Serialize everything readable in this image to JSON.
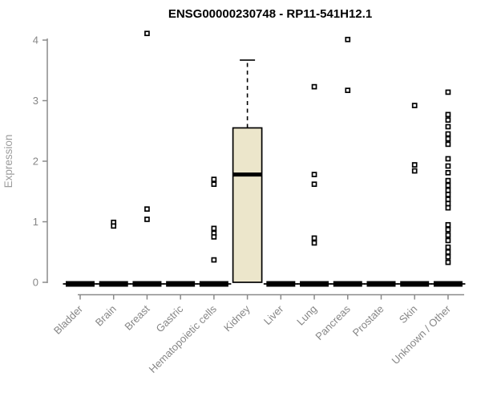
{
  "colors": {
    "background": "#ffffff",
    "chart_title": "#000000",
    "axis_line": "#8a8a8a",
    "tick_label": "#868686",
    "axis_title": "#9c9c9c",
    "box_fill": "#ece6cb",
    "box_stroke": "#000000",
    "outlier_fill": "#ffffff",
    "outlier_stroke": "#000000"
  },
  "chart_data": {
    "type": "boxplot",
    "title": "ENSG00000230748 - RP11-541H12.1",
    "xlabel": "",
    "ylabel": "Expression",
    "ylim": [
      0,
      4
    ],
    "yticks": [
      0,
      1,
      2,
      3,
      4
    ],
    "grid": false,
    "categories": [
      "Bladder",
      "Brain",
      "Breast",
      "Gastric",
      "Hematopoietic cells",
      "Kidney",
      "Liver",
      "Lung",
      "Pancreas",
      "Prostate",
      "Skin",
      "Unknown / Other"
    ],
    "boxes": [
      {
        "category": "Bladder",
        "q1": 0,
        "median": 0,
        "q3": 0,
        "whisker_low": 0,
        "whisker_high": 0,
        "outliers": []
      },
      {
        "category": "Brain",
        "q1": 0,
        "median": 0,
        "q3": 0,
        "whisker_low": 0,
        "whisker_high": 0,
        "outliers": [
          0.99,
          0.93
        ]
      },
      {
        "category": "Breast",
        "q1": 0,
        "median": 0,
        "q3": 0,
        "whisker_low": 0,
        "whisker_high": 0,
        "outliers": [
          4.11,
          1.21,
          1.04
        ]
      },
      {
        "category": "Gastric",
        "q1": 0,
        "median": 0,
        "q3": 0,
        "whisker_low": 0,
        "whisker_high": 0,
        "outliers": []
      },
      {
        "category": "Hematopoietic cells",
        "q1": 0,
        "median": 0,
        "q3": 0,
        "whisker_low": 0,
        "whisker_high": 0,
        "outliers": [
          1.7,
          1.62,
          0.89,
          0.81,
          0.75,
          0.37
        ]
      },
      {
        "category": "Kidney",
        "q1": 0,
        "median": 1.78,
        "q3": 2.55,
        "whisker_low": 0,
        "whisker_high": 3.67,
        "outliers": []
      },
      {
        "category": "Liver",
        "q1": 0,
        "median": 0,
        "q3": 0,
        "whisker_low": 0,
        "whisker_high": 0,
        "outliers": []
      },
      {
        "category": "Lung",
        "q1": 0,
        "median": 0,
        "q3": 0,
        "whisker_low": 0,
        "whisker_high": 0,
        "outliers": [
          3.23,
          1.78,
          1.62,
          0.73,
          0.65
        ]
      },
      {
        "category": "Pancreas",
        "q1": 0,
        "median": 0,
        "q3": 0,
        "whisker_low": 0,
        "whisker_high": 0,
        "outliers": [
          4.01,
          3.17
        ]
      },
      {
        "category": "Prostate",
        "q1": 0,
        "median": 0,
        "q3": 0,
        "whisker_low": 0,
        "whisker_high": 0,
        "outliers": []
      },
      {
        "category": "Skin",
        "q1": 0,
        "median": 0,
        "q3": 0,
        "whisker_low": 0,
        "whisker_high": 0,
        "outliers": [
          2.92,
          1.94,
          1.84
        ]
      },
      {
        "category": "Unknown / Other",
        "q1": 0,
        "median": 0,
        "q3": 0,
        "whisker_low": 0,
        "whisker_high": 0,
        "outliers": [
          3.14,
          2.77,
          2.68,
          2.57,
          2.45,
          2.37,
          2.28,
          2.04,
          1.92,
          1.81,
          1.68,
          1.6,
          1.52,
          1.45,
          1.37,
          1.3,
          1.23,
          0.95,
          0.87,
          0.78,
          0.69,
          0.58,
          0.5,
          0.42,
          0.33
        ]
      }
    ]
  }
}
